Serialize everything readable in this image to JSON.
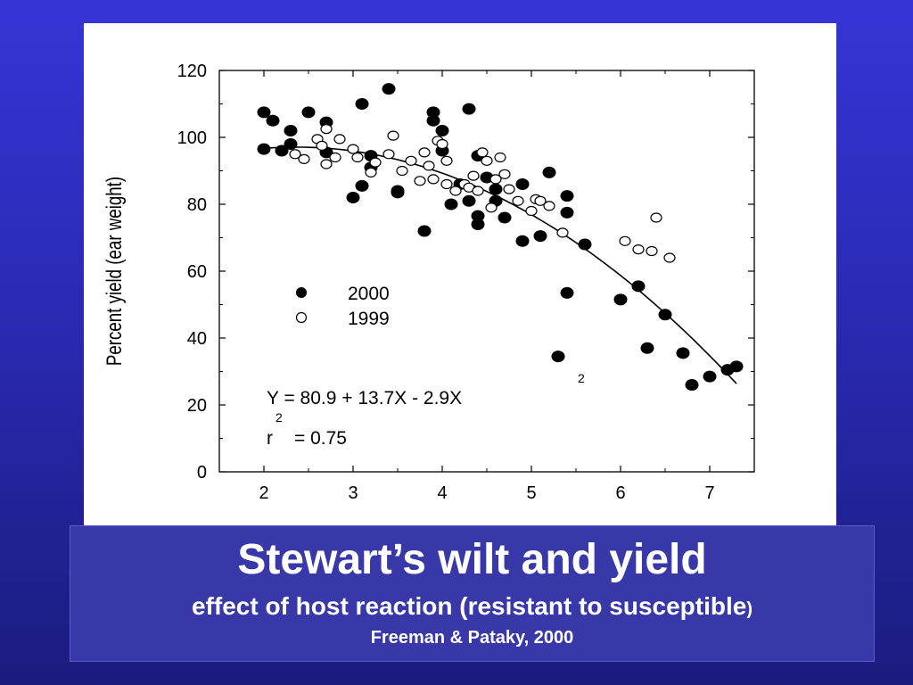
{
  "slide": {
    "title": "Stewart’s wilt and yield",
    "subtitle": "effect of host reaction (resistant to susceptible",
    "subtitle_close": ")",
    "citation": "Freeman & Pataky, 2000"
  },
  "colors": {
    "background": "#2a2ab4",
    "title_box": "#3838a8",
    "text": "#ffffff"
  },
  "chart_data": {
    "type": "scatter",
    "ylabel": "Percent yield (ear weight)",
    "xlabel": "",
    "xlim": [
      1.5,
      7.5
    ],
    "ylim": [
      0,
      120
    ],
    "xticks": [
      2,
      3,
      4,
      5,
      6,
      7
    ],
    "yticks": [
      0,
      20,
      40,
      60,
      80,
      100,
      120
    ],
    "grid": false,
    "legend": {
      "placement": "center-left",
      "entries": [
        {
          "name": "2000",
          "marker": "filled"
        },
        {
          "name": "1999",
          "marker": "open"
        }
      ]
    },
    "equation": {
      "main": "Y = 80.9 + 13.7X - 2.9X",
      "superscript": "2"
    },
    "r_squared": {
      "prefix": "r",
      "superscript": "2",
      "value": "= 0.75"
    },
    "fit": {
      "type": "quadratic",
      "a": 80.9,
      "b": 13.7,
      "c": -2.9,
      "x_range": [
        2.0,
        7.3
      ]
    },
    "series": [
      {
        "name": "2000",
        "marker": "filled",
        "points": [
          [
            2.0,
            107.5
          ],
          [
            2.1,
            105
          ],
          [
            2.0,
            96.5
          ],
          [
            2.2,
            96
          ],
          [
            2.3,
            102
          ],
          [
            2.3,
            98
          ],
          [
            2.5,
            107.5
          ],
          [
            2.7,
            104.5
          ],
          [
            2.7,
            95.5
          ],
          [
            3.0,
            82
          ],
          [
            3.1,
            85.5
          ],
          [
            3.1,
            110
          ],
          [
            3.2,
            94.5
          ],
          [
            3.2,
            91
          ],
          [
            3.4,
            114.5
          ],
          [
            3.5,
            84
          ],
          [
            3.5,
            83.5
          ],
          [
            3.8,
            72
          ],
          [
            3.9,
            107.5
          ],
          [
            3.9,
            105
          ],
          [
            4.0,
            102
          ],
          [
            4.0,
            96
          ],
          [
            4.1,
            80
          ],
          [
            4.2,
            86
          ],
          [
            4.3,
            108.5
          ],
          [
            4.3,
            81
          ],
          [
            4.4,
            94.5
          ],
          [
            4.4,
            76.5
          ],
          [
            4.4,
            74
          ],
          [
            4.5,
            88
          ],
          [
            4.6,
            84.5
          ],
          [
            4.6,
            81
          ],
          [
            4.7,
            76
          ],
          [
            4.9,
            86
          ],
          [
            4.9,
            69
          ],
          [
            5.1,
            70.5
          ],
          [
            5.2,
            89.5
          ],
          [
            5.3,
            34.5
          ],
          [
            5.4,
            82.5
          ],
          [
            5.4,
            77.5
          ],
          [
            5.4,
            53.5
          ],
          [
            5.6,
            68
          ],
          [
            6.0,
            51.5
          ],
          [
            6.2,
            55.5
          ],
          [
            6.3,
            37
          ],
          [
            6.5,
            47
          ],
          [
            6.7,
            35.5
          ],
          [
            6.8,
            26
          ],
          [
            7.0,
            28.5
          ],
          [
            7.2,
            30.5
          ],
          [
            7.3,
            31.5
          ]
        ]
      },
      {
        "name": "1999",
        "marker": "open",
        "points": [
          [
            2.35,
            95
          ],
          [
            2.45,
            93.5
          ],
          [
            2.6,
            99.5
          ],
          [
            2.65,
            97.5
          ],
          [
            2.7,
            102.5
          ],
          [
            2.7,
            92
          ],
          [
            2.8,
            94
          ],
          [
            2.85,
            99.5
          ],
          [
            3.0,
            96.5
          ],
          [
            3.05,
            94
          ],
          [
            3.2,
            89.5
          ],
          [
            3.25,
            92.5
          ],
          [
            3.4,
            95
          ],
          [
            3.45,
            100.5
          ],
          [
            3.55,
            90
          ],
          [
            3.65,
            93
          ],
          [
            3.75,
            87
          ],
          [
            3.8,
            95.5
          ],
          [
            3.85,
            91.5
          ],
          [
            3.9,
            87.5
          ],
          [
            3.95,
            99
          ],
          [
            4.0,
            98
          ],
          [
            4.05,
            93
          ],
          [
            4.05,
            86
          ],
          [
            4.15,
            84
          ],
          [
            4.25,
            86
          ],
          [
            4.3,
            85
          ],
          [
            4.35,
            88.5
          ],
          [
            4.4,
            84
          ],
          [
            4.45,
            95.5
          ],
          [
            4.5,
            93
          ],
          [
            4.55,
            79
          ],
          [
            4.6,
            87.5
          ],
          [
            4.65,
            94
          ],
          [
            4.7,
            89
          ],
          [
            4.75,
            84.5
          ],
          [
            4.85,
            81
          ],
          [
            5.0,
            78
          ],
          [
            5.05,
            81.5
          ],
          [
            5.1,
            81
          ],
          [
            5.2,
            79.5
          ],
          [
            5.35,
            71.5
          ],
          [
            6.05,
            69
          ],
          [
            6.2,
            66.5
          ],
          [
            6.35,
            66
          ],
          [
            6.4,
            76
          ],
          [
            6.55,
            64
          ]
        ]
      }
    ]
  }
}
